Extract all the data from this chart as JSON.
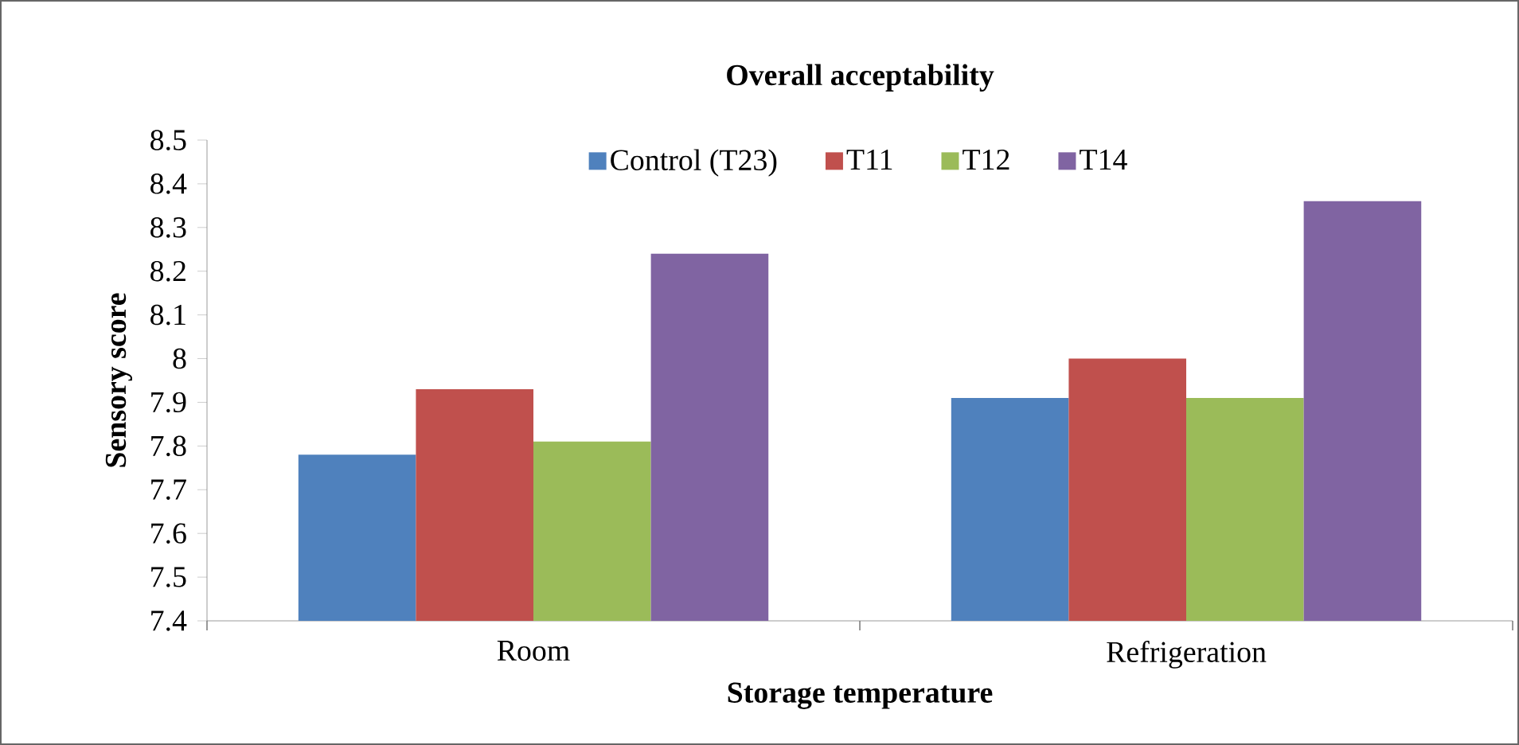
{
  "chart_data": {
    "type": "bar",
    "title": "Overall acceptability",
    "xlabel": "Storage temperature",
    "ylabel": "Sensory score",
    "categories": [
      "Room",
      "Refrigeration"
    ],
    "series": [
      {
        "name": "Control (T23)",
        "color": "#4f81bd",
        "values": [
          7.78,
          7.91
        ]
      },
      {
        "name": "T11",
        "color": "#c0504d",
        "values": [
          7.93,
          8.0
        ]
      },
      {
        "name": "T12",
        "color": "#9bbb59",
        "values": [
          7.81,
          7.91
        ]
      },
      {
        "name": "T14",
        "color": "#8064a2",
        "values": [
          8.24,
          8.36
        ]
      }
    ],
    "ylim": [
      7.4,
      8.5
    ],
    "yticks": [
      7.4,
      7.5,
      7.6,
      7.7,
      7.8,
      7.9,
      8,
      8.1,
      8.2,
      8.3,
      8.4,
      8.5
    ],
    "legend": "top",
    "grid": false
  }
}
